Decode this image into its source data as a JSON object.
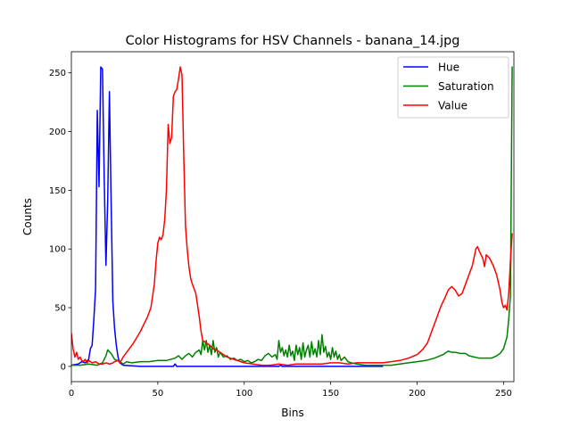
{
  "chart_data": {
    "type": "line",
    "title": "Color Histograms for HSV Channels - banana_14.jpg",
    "xlabel": "Bins",
    "ylabel": "Counts",
    "xlim": [
      0,
      256
    ],
    "ylim": [
      -13,
      268
    ],
    "xticks": [
      0,
      50,
      100,
      150,
      200,
      250
    ],
    "yticks": [
      0,
      50,
      100,
      150,
      200,
      250
    ],
    "grid": false,
    "legend_position": "top-right",
    "series": [
      {
        "name": "Hue",
        "color": "#0000ff",
        "points": [
          [
            0,
            1
          ],
          [
            4,
            2
          ],
          [
            6,
            4
          ],
          [
            8,
            3
          ],
          [
            10,
            6
          ],
          [
            11,
            15
          ],
          [
            12,
            18
          ],
          [
            13,
            40
          ],
          [
            14,
            66
          ],
          [
            15,
            218
          ],
          [
            16,
            153
          ],
          [
            17,
            255
          ],
          [
            18,
            253
          ],
          [
            19,
            160
          ],
          [
            20,
            86
          ],
          [
            21,
            140
          ],
          [
            22,
            234
          ],
          [
            23,
            140
          ],
          [
            24,
            55
          ],
          [
            25,
            32
          ],
          [
            26,
            18
          ],
          [
            27,
            8
          ],
          [
            28,
            3
          ],
          [
            30,
            1
          ],
          [
            40,
            0
          ],
          [
            55,
            0
          ],
          [
            59,
            0
          ],
          [
            60,
            2
          ],
          [
            61,
            0
          ],
          [
            70,
            0
          ],
          [
            120,
            0
          ],
          [
            121,
            1
          ],
          [
            122,
            0
          ],
          [
            150,
            0
          ],
          [
            180,
            0
          ]
        ]
      },
      {
        "name": "Saturation",
        "color": "#008000",
        "points": [
          [
            0,
            1
          ],
          [
            5,
            1
          ],
          [
            10,
            2
          ],
          [
            15,
            1
          ],
          [
            18,
            3
          ],
          [
            20,
            9
          ],
          [
            21,
            14
          ],
          [
            23,
            11
          ],
          [
            25,
            6
          ],
          [
            28,
            4
          ],
          [
            30,
            2
          ],
          [
            32,
            4
          ],
          [
            35,
            3
          ],
          [
            40,
            4
          ],
          [
            45,
            4
          ],
          [
            50,
            5
          ],
          [
            55,
            5
          ],
          [
            60,
            7
          ],
          [
            62,
            9
          ],
          [
            64,
            6
          ],
          [
            66,
            9
          ],
          [
            68,
            11
          ],
          [
            70,
            8
          ],
          [
            72,
            12
          ],
          [
            74,
            14
          ],
          [
            75,
            10
          ],
          [
            76,
            22
          ],
          [
            77,
            14
          ],
          [
            78,
            22
          ],
          [
            79,
            12
          ],
          [
            80,
            18
          ],
          [
            81,
            10
          ],
          [
            82,
            22
          ],
          [
            83,
            12
          ],
          [
            84,
            16
          ],
          [
            85,
            8
          ],
          [
            86,
            12
          ],
          [
            88,
            8
          ],
          [
            90,
            9
          ],
          [
            92,
            6
          ],
          [
            94,
            7
          ],
          [
            96,
            5
          ],
          [
            98,
            6
          ],
          [
            100,
            4
          ],
          [
            102,
            5
          ],
          [
            104,
            3
          ],
          [
            106,
            4
          ],
          [
            108,
            6
          ],
          [
            110,
            5
          ],
          [
            112,
            9
          ],
          [
            114,
            11
          ],
          [
            116,
            8
          ],
          [
            118,
            10
          ],
          [
            119,
            6
          ],
          [
            120,
            22
          ],
          [
            121,
            12
          ],
          [
            122,
            16
          ],
          [
            123,
            9
          ],
          [
            124,
            14
          ],
          [
            125,
            8
          ],
          [
            126,
            18
          ],
          [
            127,
            9
          ],
          [
            128,
            13
          ],
          [
            129,
            5
          ],
          [
            130,
            18
          ],
          [
            131,
            10
          ],
          [
            132,
            16
          ],
          [
            133,
            6
          ],
          [
            134,
            20
          ],
          [
            135,
            8
          ],
          [
            136,
            14
          ],
          [
            137,
            18
          ],
          [
            138,
            8
          ],
          [
            139,
            21
          ],
          [
            140,
            10
          ],
          [
            141,
            15
          ],
          [
            142,
            8
          ],
          [
            143,
            22
          ],
          [
            144,
            10
          ],
          [
            145,
            27
          ],
          [
            146,
            12
          ],
          [
            147,
            17
          ],
          [
            148,
            8
          ],
          [
            149,
            12
          ],
          [
            150,
            6
          ],
          [
            151,
            16
          ],
          [
            152,
            8
          ],
          [
            153,
            13
          ],
          [
            154,
            6
          ],
          [
            155,
            10
          ],
          [
            156,
            5
          ],
          [
            158,
            8
          ],
          [
            160,
            4
          ],
          [
            162,
            3
          ],
          [
            165,
            2
          ],
          [
            170,
            1
          ],
          [
            175,
            1
          ],
          [
            180,
            1
          ],
          [
            185,
            1
          ],
          [
            190,
            2
          ],
          [
            195,
            3
          ],
          [
            200,
            4
          ],
          [
            205,
            5
          ],
          [
            210,
            7
          ],
          [
            215,
            10
          ],
          [
            218,
            13
          ],
          [
            220,
            12
          ],
          [
            222,
            12
          ],
          [
            225,
            11
          ],
          [
            228,
            11
          ],
          [
            230,
            9
          ],
          [
            233,
            8
          ],
          [
            236,
            7
          ],
          [
            240,
            7
          ],
          [
            243,
            7
          ],
          [
            246,
            9
          ],
          [
            248,
            11
          ],
          [
            250,
            15
          ],
          [
            252,
            25
          ],
          [
            253,
            40
          ],
          [
            254,
            60
          ],
          [
            255,
            255
          ]
        ]
      },
      {
        "name": "Value",
        "color": "#ff0000",
        "points": [
          [
            0,
            28
          ],
          [
            1,
            15
          ],
          [
            2,
            8
          ],
          [
            3,
            12
          ],
          [
            4,
            6
          ],
          [
            5,
            8
          ],
          [
            6,
            5
          ],
          [
            7,
            4
          ],
          [
            8,
            6
          ],
          [
            9,
            3
          ],
          [
            10,
            5
          ],
          [
            12,
            3
          ],
          [
            14,
            4
          ],
          [
            16,
            2
          ],
          [
            18,
            2
          ],
          [
            20,
            3
          ],
          [
            22,
            2
          ],
          [
            24,
            3
          ],
          [
            25,
            4
          ],
          [
            27,
            5
          ],
          [
            28,
            3
          ],
          [
            30,
            8
          ],
          [
            32,
            12
          ],
          [
            34,
            16
          ],
          [
            36,
            20
          ],
          [
            38,
            25
          ],
          [
            40,
            30
          ],
          [
            42,
            36
          ],
          [
            44,
            42
          ],
          [
            46,
            50
          ],
          [
            48,
            70
          ],
          [
            49,
            90
          ],
          [
            50,
            105
          ],
          [
            51,
            110
          ],
          [
            52,
            108
          ],
          [
            53,
            112
          ],
          [
            54,
            125
          ],
          [
            55,
            150
          ],
          [
            56,
            206
          ],
          [
            57,
            190
          ],
          [
            58,
            195
          ],
          [
            59,
            230
          ],
          [
            60,
            234
          ],
          [
            61,
            236
          ],
          [
            62,
            245
          ],
          [
            63,
            255
          ],
          [
            64,
            248
          ],
          [
            65,
            180
          ],
          [
            66,
            120
          ],
          [
            67,
            100
          ],
          [
            68,
            85
          ],
          [
            69,
            75
          ],
          [
            70,
            70
          ],
          [
            72,
            62
          ],
          [
            73,
            52
          ],
          [
            74,
            42
          ],
          [
            75,
            30
          ],
          [
            76,
            22
          ],
          [
            78,
            20
          ],
          [
            80,
            18
          ],
          [
            82,
            15
          ],
          [
            84,
            14
          ],
          [
            86,
            12
          ],
          [
            88,
            10
          ],
          [
            90,
            8
          ],
          [
            92,
            7
          ],
          [
            94,
            6
          ],
          [
            96,
            5
          ],
          [
            98,
            4
          ],
          [
            100,
            3
          ],
          [
            105,
            2
          ],
          [
            110,
            1
          ],
          [
            115,
            1
          ],
          [
            120,
            2
          ],
          [
            125,
            1
          ],
          [
            130,
            2
          ],
          [
            135,
            2
          ],
          [
            140,
            2
          ],
          [
            145,
            2
          ],
          [
            150,
            3
          ],
          [
            155,
            3
          ],
          [
            160,
            2
          ],
          [
            165,
            3
          ],
          [
            170,
            3
          ],
          [
            175,
            3
          ],
          [
            180,
            3
          ],
          [
            185,
            4
          ],
          [
            190,
            5
          ],
          [
            195,
            7
          ],
          [
            200,
            10
          ],
          [
            203,
            14
          ],
          [
            206,
            20
          ],
          [
            208,
            28
          ],
          [
            210,
            36
          ],
          [
            212,
            44
          ],
          [
            214,
            52
          ],
          [
            216,
            58
          ],
          [
            218,
            65
          ],
          [
            220,
            68
          ],
          [
            222,
            65
          ],
          [
            224,
            60
          ],
          [
            226,
            62
          ],
          [
            228,
            70
          ],
          [
            230,
            78
          ],
          [
            232,
            86
          ],
          [
            234,
            100
          ],
          [
            235,
            102
          ],
          [
            236,
            98
          ],
          [
            238,
            92
          ],
          [
            239,
            85
          ],
          [
            240,
            95
          ],
          [
            242,
            92
          ],
          [
            244,
            86
          ],
          [
            246,
            78
          ],
          [
            248,
            65
          ],
          [
            249,
            55
          ],
          [
            250,
            50
          ],
          [
            251,
            52
          ],
          [
            252,
            48
          ],
          [
            253,
            62
          ],
          [
            254,
            90
          ],
          [
            255,
            113
          ]
        ]
      }
    ]
  }
}
